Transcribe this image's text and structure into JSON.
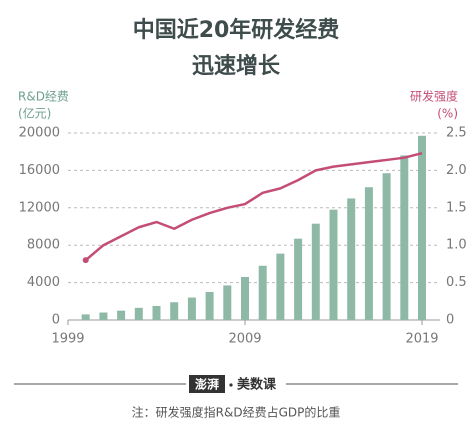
{
  "chart_data": {
    "type": "bar",
    "title": [
      "中国近20年研发经费",
      "迅速增长"
    ],
    "y_label": [
      "R&D经费",
      "(亿元)"
    ],
    "y2_label": [
      "研发强度",
      "(%)"
    ],
    "x": [
      2000,
      2001,
      2002,
      2003,
      2004,
      2005,
      2006,
      2007,
      2008,
      2009,
      2010,
      2011,
      2012,
      2013,
      2014,
      2015,
      2016,
      2017,
      2018,
      2019
    ],
    "xlim": [
      1999,
      2019
    ],
    "xticks": [
      1999,
      2009,
      2019
    ],
    "ylim": [
      0,
      20000
    ],
    "yticks": [
      0,
      4000,
      8000,
      12000,
      16000,
      20000
    ],
    "y2lim": [
      0,
      2.5
    ],
    "y2ticks": [
      0,
      0.5,
      {
        "value": 1.0,
        "label": "1.0"
      },
      1.5,
      {
        "value": 2.0,
        "label": "2.0"
      },
      2.5
    ],
    "grid": true,
    "series": [
      {
        "name": "R&D经费",
        "type": "bar",
        "color": "#8fb9a7",
        "values": [
          600,
          800,
          1000,
          1300,
          1500,
          1900,
          2400,
          3000,
          3700,
          4600,
          5800,
          7100,
          8700,
          10300,
          11800,
          13000,
          14200,
          15700,
          17600,
          19700
        ]
      },
      {
        "name": "研发强度",
        "type": "line",
        "axis": "y2",
        "color": "#c44d76",
        "values": [
          0.8,
          1.0,
          1.12,
          1.24,
          1.31,
          1.22,
          1.34,
          1.43,
          1.5,
          1.55,
          1.7,
          1.76,
          1.87,
          2.0,
          2.05,
          2.08,
          2.11,
          2.14,
          2.17,
          2.23
        ]
      }
    ]
  },
  "footer": {
    "logo_left": "澎湃",
    "logo_right": "美数课",
    "note": "注：研发强度指R&D经费占GDP的比重"
  }
}
